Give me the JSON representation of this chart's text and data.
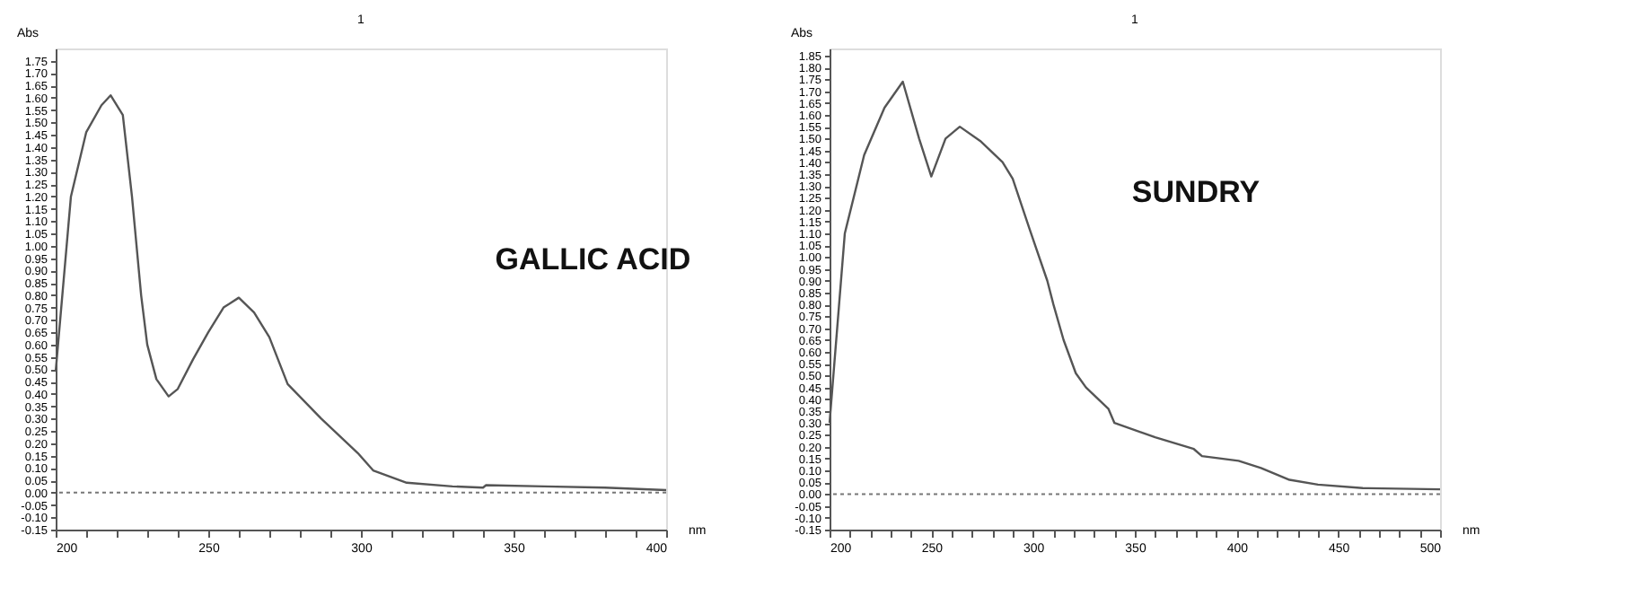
{
  "chart_data": [
    {
      "type": "line",
      "title": "1",
      "xlabel": "nm",
      "ylabel": "Abs",
      "annotations": [
        "GALLIC ACID"
      ],
      "x": [
        200,
        205,
        210,
        215,
        218,
        222,
        225,
        228,
        230,
        233,
        237,
        240,
        245,
        250,
        255,
        260,
        265,
        270,
        276,
        287,
        299,
        304,
        315,
        330,
        340,
        341,
        360,
        380,
        400
      ],
      "series": [
        {
          "color": "#555555",
          "line_style": "solid",
          "values": [
            0.49,
            1.2,
            1.46,
            1.57,
            1.61,
            1.53,
            1.2,
            0.8,
            0.6,
            0.46,
            0.39,
            0.42,
            0.54,
            0.65,
            0.75,
            0.79,
            0.73,
            0.63,
            0.44,
            0.3,
            0.16,
            0.09,
            0.04,
            0.025,
            0.02,
            0.03,
            0.025,
            0.02,
            0.01
          ]
        }
      ],
      "xlim": [
        200,
        400
      ],
      "xticks": [
        200,
        {
          "value": 210,
          "label": null
        },
        {
          "value": 220,
          "label": null
        },
        {
          "value": 230,
          "label": null
        },
        {
          "value": 240,
          "label": null
        },
        250,
        {
          "value": 260,
          "label": null
        },
        {
          "value": 270,
          "label": null
        },
        {
          "value": 280,
          "label": null
        },
        {
          "value": 290,
          "label": null
        },
        300,
        {
          "value": 310,
          "label": null
        },
        {
          "value": 320,
          "label": null
        },
        {
          "value": 330,
          "label": null
        },
        {
          "value": 340,
          "label": null
        },
        350,
        {
          "value": 360,
          "label": null
        },
        {
          "value": 370,
          "label": null
        },
        {
          "value": 380,
          "label": null
        },
        {
          "value": 390,
          "label": null
        },
        400
      ],
      "ylim": [
        -0.15,
        1.8
      ],
      "yticks": [
        {
          "value": -0.15,
          "label": "-0.15"
        },
        {
          "value": -0.1,
          "label": "-0.10"
        },
        {
          "value": -0.05,
          "label": "-0.05"
        },
        {
          "value": 0,
          "label": "0.00"
        },
        0.05,
        {
          "value": 0.1,
          "label": "0.10"
        },
        0.15,
        {
          "value": 0.2,
          "label": "0.20"
        },
        0.25,
        {
          "value": 0.3,
          "label": "0.30"
        },
        0.35,
        {
          "value": 0.4,
          "label": "0.40"
        },
        0.45,
        {
          "value": 0.5,
          "label": "0.50"
        },
        0.55,
        {
          "value": 0.6,
          "label": "0.60"
        },
        0.65,
        {
          "value": 0.7,
          "label": "0.70"
        },
        0.75,
        {
          "value": 0.8,
          "label": "0.80"
        },
        0.85,
        {
          "value": 0.9,
          "label": "0.90"
        },
        0.95,
        {
          "value": 1,
          "label": "1.00"
        },
        1.05,
        {
          "value": 1.1,
          "label": "1.10"
        },
        1.15,
        {
          "value": 1.2,
          "label": "1.20"
        },
        1.25,
        {
          "value": 1.3,
          "label": "1.30"
        },
        1.35,
        {
          "value": 1.4,
          "label": "1.40"
        },
        1.45,
        {
          "value": 1.5,
          "label": "1.50"
        },
        1.55,
        {
          "value": 1.6,
          "label": "1.60"
        },
        1.65,
        {
          "value": 1.7,
          "label": "1.70"
        },
        1.75
      ],
      "ref_lines": [
        {
          "axis": "y",
          "value": 0,
          "color": "#777777",
          "line_style": "dotted"
        }
      ],
      "grid": false
    },
    {
      "type": "line",
      "title": "1",
      "xlabel": "nm",
      "ylabel": "Abs",
      "annotations": [
        "SUNDRY"
      ],
      "x": [
        200,
        207.5,
        217,
        227,
        236,
        244,
        250,
        257,
        264,
        274,
        285,
        290,
        299,
        307,
        310,
        315,
        321,
        326,
        337,
        340,
        360,
        379,
        383,
        401,
        412,
        426,
        440,
        462,
        500
      ],
      "series": [
        {
          "color": "#555555",
          "line_style": "solid",
          "values": [
            0.3,
            1.1,
            1.43,
            1.63,
            1.74,
            1.5,
            1.34,
            1.5,
            1.55,
            1.49,
            1.4,
            1.33,
            1.1,
            0.9,
            0.8,
            0.65,
            0.51,
            0.45,
            0.36,
            0.3,
            0.24,
            0.19,
            0.16,
            0.14,
            0.11,
            0.06,
            0.04,
            0.025,
            0.02
          ]
        }
      ],
      "xlim": [
        200,
        500
      ],
      "xticks": [
        200,
        {
          "value": 210,
          "label": null
        },
        {
          "value": 220,
          "label": null
        },
        {
          "value": 230,
          "label": null
        },
        {
          "value": 240,
          "label": null
        },
        250,
        {
          "value": 260,
          "label": null
        },
        {
          "value": 270,
          "label": null
        },
        {
          "value": 280,
          "label": null
        },
        {
          "value": 290,
          "label": null
        },
        300,
        {
          "value": 310,
          "label": null
        },
        {
          "value": 320,
          "label": null
        },
        {
          "value": 330,
          "label": null
        },
        {
          "value": 340,
          "label": null
        },
        350,
        {
          "value": 360,
          "label": null
        },
        {
          "value": 370,
          "label": null
        },
        {
          "value": 380,
          "label": null
        },
        {
          "value": 390,
          "label": null
        },
        400,
        {
          "value": 410,
          "label": null
        },
        {
          "value": 420,
          "label": null
        },
        {
          "value": 430,
          "label": null
        },
        {
          "value": 440,
          "label": null
        },
        450,
        {
          "value": 460,
          "label": null
        },
        {
          "value": 470,
          "label": null
        },
        {
          "value": 480,
          "label": null
        },
        {
          "value": 490,
          "label": null
        },
        500
      ],
      "ylim": [
        -0.15,
        1.88
      ],
      "yticks": [
        {
          "value": -0.15,
          "label": "-0.15"
        },
        {
          "value": -0.1,
          "label": "-0.10"
        },
        {
          "value": -0.05,
          "label": "-0.05"
        },
        {
          "value": 0,
          "label": "0.00"
        },
        0.05,
        {
          "value": 0.1,
          "label": "0.10"
        },
        0.15,
        {
          "value": 0.2,
          "label": "0.20"
        },
        0.25,
        {
          "value": 0.3,
          "label": "0.30"
        },
        0.35,
        {
          "value": 0.4,
          "label": "0.40"
        },
        0.45,
        {
          "value": 0.5,
          "label": "0.50"
        },
        0.55,
        {
          "value": 0.6,
          "label": "0.60"
        },
        0.65,
        {
          "value": 0.7,
          "label": "0.70"
        },
        0.75,
        {
          "value": 0.8,
          "label": "0.80"
        },
        0.85,
        {
          "value": 0.9,
          "label": "0.90"
        },
        0.95,
        {
          "value": 1,
          "label": "1.00"
        },
        1.05,
        {
          "value": 1.1,
          "label": "1.10"
        },
        1.15,
        {
          "value": 1.2,
          "label": "1.20"
        },
        1.25,
        {
          "value": 1.3,
          "label": "1.30"
        },
        1.35,
        {
          "value": 1.4,
          "label": "1.40"
        },
        1.45,
        {
          "value": 1.5,
          "label": "1.50"
        },
        1.55,
        {
          "value": 1.6,
          "label": "1.60"
        },
        1.65,
        {
          "value": 1.7,
          "label": "1.70"
        },
        1.75,
        {
          "value": 1.8,
          "label": "1.80"
        },
        1.85
      ],
      "ref_lines": [
        {
          "axis": "y",
          "value": 0,
          "color": "#777777",
          "line_style": "dotted"
        }
      ],
      "grid": false
    }
  ]
}
